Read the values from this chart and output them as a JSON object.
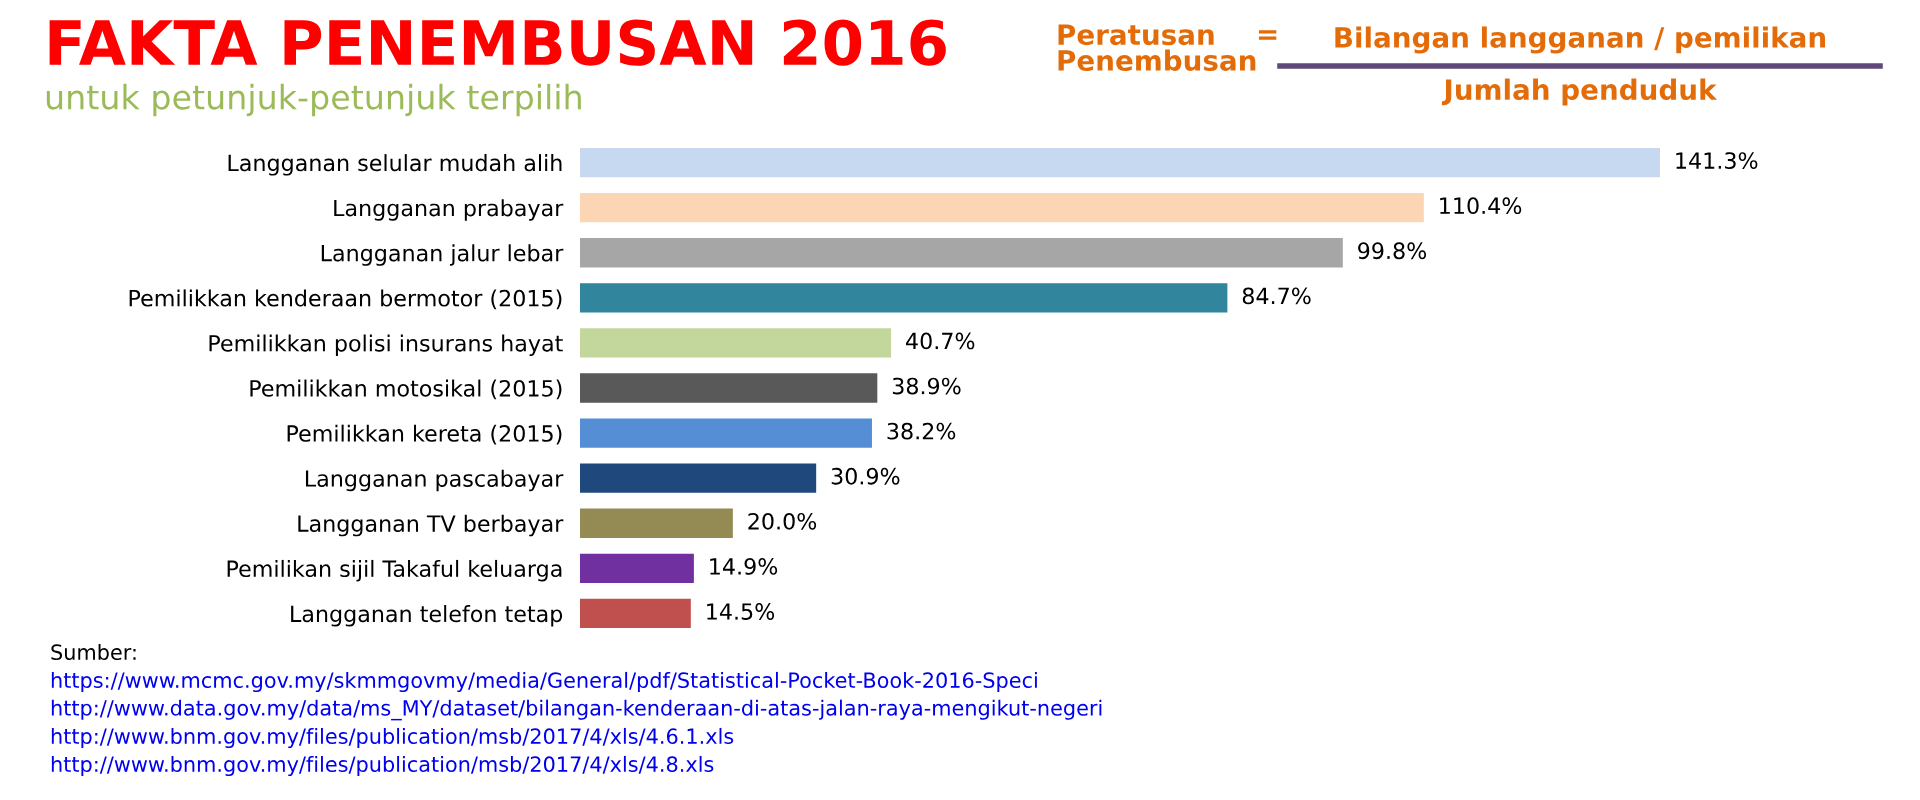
{
  "chart_data": {
    "type": "bar",
    "orientation": "horizontal",
    "title": "FAKTA PENEMBUSAN 2016",
    "subtitle": "untuk petunjuk-petunjuk terpilih",
    "categories": [
      "Langganan selular mudah alih",
      "Langganan prabayar",
      "Langganan jalur lebar",
      "Pemilikkan kenderaan bermotor (2015)",
      "Pemilikkan polisi insurans hayat",
      "Pemilikkan motosikal (2015)",
      "Pemilikkan kereta (2015)",
      "Langganan pascabayar",
      "Langganan TV berbayar",
      "Pemilikan sijil Takaful keluarga",
      "Langganan telefon tetap"
    ],
    "values": [
      141.3,
      110.4,
      99.8,
      84.7,
      40.7,
      38.9,
      38.2,
      30.9,
      20.0,
      14.9,
      14.5
    ],
    "value_labels": [
      "141.3%",
      "110.4%",
      "99.8%",
      "84.7%",
      "40.7%",
      "38.9%",
      "38.2%",
      "30.9%",
      "20.0%",
      "14.9%",
      "14.5%"
    ],
    "colors": [
      "#c6d9f1",
      "#fcd5b5",
      "#a6a6a6",
      "#31859c",
      "#c3d69b",
      "#595959",
      "#558ed5",
      "#1f497d",
      "#948a54",
      "#7030a0",
      "#c0504d"
    ],
    "annotations": [
      "Peratusan\nPenembusan",
      "=",
      "Bilangan langganan / pemilikan",
      "Jumlah penduduk",
      "Sumber:",
      "https://www.mcmc.gov.my/skmmgovmy/media/General/pdf/Statistical-Pocket-Book-2016-Speci",
      "http://www.data.gov.my/data/ms_MY/dataset/bilangan-kenderaan-di-atas-jalan-raya-mengikut-negeri",
      "http://www.bnm.gov.my/files/publication/msb/2017/4/xls/4.6.1.xls",
      "http://www.bnm.gov.my/files/publication/msb/2017/4/xls/4.8.xls"
    ]
  }
}
